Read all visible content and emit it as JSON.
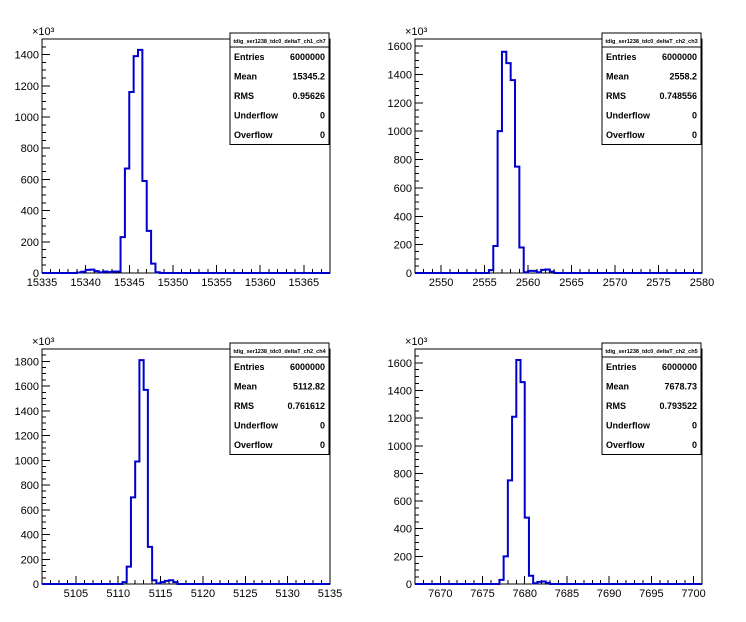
{
  "chart_data": [
    {
      "type": "histogram",
      "title": "",
      "stats_title": "tdig_ser1238_tdc0_deltaT_ch1_ch7",
      "stats": [
        {
          "label": "Entries",
          "value": "6000000"
        },
        {
          "label": "Mean",
          "value": "15345.2"
        },
        {
          "label": "RMS",
          "value": "0.95626"
        },
        {
          "label": "Underflow",
          "value": "0"
        },
        {
          "label": "Overflow",
          "value": "0"
        }
      ],
      "xlim": [
        15335,
        15368
      ],
      "ylim": [
        0,
        1500
      ],
      "xticks": [
        15335,
        15340,
        15345,
        15350,
        15355,
        15360,
        15365
      ],
      "yticks": [
        0,
        200,
        400,
        600,
        800,
        1000,
        1200,
        1400
      ],
      "yexp": "×10³",
      "bin_width": 0.5,
      "bins": [
        [
          15339.0,
          3
        ],
        [
          15339.5,
          8
        ],
        [
          15340.0,
          20
        ],
        [
          15340.5,
          22
        ],
        [
          15341.0,
          12
        ],
        [
          15341.5,
          4
        ],
        [
          15342.0,
          10
        ],
        [
          15342.5,
          6
        ],
        [
          15343.0,
          10
        ],
        [
          15343.5,
          10
        ],
        [
          15344.0,
          230
        ],
        [
          15344.5,
          670
        ],
        [
          15345.0,
          1160
        ],
        [
          15345.5,
          1390
        ],
        [
          15346.0,
          1430
        ],
        [
          15346.5,
          590
        ],
        [
          15347.0,
          270
        ],
        [
          15347.5,
          60
        ],
        [
          15348.0,
          5
        ]
      ]
    },
    {
      "type": "histogram",
      "title": "",
      "stats_title": "tdig_ser1238_tdc0_deltaT_ch2_ch3",
      "stats": [
        {
          "label": "Entries",
          "value": "6000000"
        },
        {
          "label": "Mean",
          "value": "2558.2"
        },
        {
          "label": "RMS",
          "value": "0.748556"
        },
        {
          "label": "Underflow",
          "value": "0"
        },
        {
          "label": "Overflow",
          "value": "0"
        }
      ],
      "xlim": [
        2547,
        2580
      ],
      "ylim": [
        0,
        1650
      ],
      "xticks": [
        2550,
        2555,
        2560,
        2565,
        2570,
        2575,
        2580
      ],
      "yticks": [
        0,
        200,
        400,
        600,
        800,
        1000,
        1200,
        1400,
        1600
      ],
      "yexp": "×10³",
      "bin_width": 0.5,
      "bins": [
        [
          2555.5,
          20
        ],
        [
          2556.0,
          190
        ],
        [
          2556.5,
          1000
        ],
        [
          2557.0,
          1560
        ],
        [
          2557.5,
          1480
        ],
        [
          2558.0,
          1360
        ],
        [
          2558.5,
          750
        ],
        [
          2559.0,
          180
        ],
        [
          2559.5,
          5
        ],
        [
          2560.0,
          15
        ],
        [
          2560.5,
          15
        ],
        [
          2561.0,
          5
        ],
        [
          2561.5,
          22
        ],
        [
          2562.0,
          25
        ],
        [
          2562.5,
          10
        ]
      ]
    },
    {
      "type": "histogram",
      "title": "",
      "stats_title": "tdig_ser1238_tdc0_deltaT_ch2_ch4",
      "stats": [
        {
          "label": "Entries",
          "value": "6000000"
        },
        {
          "label": "Mean",
          "value": "5112.82"
        },
        {
          "label": "RMS",
          "value": "0.761612"
        },
        {
          "label": "Underflow",
          "value": "0"
        },
        {
          "label": "Overflow",
          "value": "0"
        }
      ],
      "xlim": [
        5101,
        5135
      ],
      "ylim": [
        0,
        1900
      ],
      "xticks": [
        5105,
        5110,
        5115,
        5120,
        5125,
        5130,
        5135
      ],
      "yticks": [
        0,
        200,
        400,
        600,
        800,
        1000,
        1200,
        1400,
        1600,
        1800
      ],
      "yexp": "×10³",
      "bin_width": 0.5,
      "bins": [
        [
          5110.5,
          15
        ],
        [
          5111.0,
          140
        ],
        [
          5111.5,
          700
        ],
        [
          5112.0,
          990
        ],
        [
          5112.5,
          1810
        ],
        [
          5113.0,
          1570
        ],
        [
          5113.5,
          300
        ],
        [
          5114.0,
          30
        ],
        [
          5114.5,
          5
        ],
        [
          5115.0,
          15
        ],
        [
          5115.5,
          25
        ],
        [
          5116.0,
          30
        ],
        [
          5116.5,
          15
        ]
      ]
    },
    {
      "type": "histogram",
      "title": "",
      "stats_title": "tdig_ser1238_tdc0_deltaT_ch2_ch5",
      "stats": [
        {
          "label": "Entries",
          "value": "6000000"
        },
        {
          "label": "Mean",
          "value": "7678.73"
        },
        {
          "label": "RMS",
          "value": "0.793522"
        },
        {
          "label": "Underflow",
          "value": "0"
        },
        {
          "label": "Overflow",
          "value": "0"
        }
      ],
      "xlim": [
        7667,
        7701
      ],
      "ylim": [
        0,
        1700
      ],
      "xticks": [
        7670,
        7675,
        7680,
        7685,
        7690,
        7695,
        7700
      ],
      "yticks": [
        0,
        200,
        400,
        600,
        800,
        1000,
        1200,
        1400,
        1600
      ],
      "yexp": "×10³",
      "bin_width": 0.5,
      "bins": [
        [
          7677.0,
          30
        ],
        [
          7677.5,
          200
        ],
        [
          7678.0,
          750
        ],
        [
          7678.5,
          1210
        ],
        [
          7679.0,
          1620
        ],
        [
          7679.5,
          1460
        ],
        [
          7680.0,
          480
        ],
        [
          7680.5,
          60
        ],
        [
          7681.0,
          5
        ],
        [
          7681.5,
          15
        ],
        [
          7682.0,
          18
        ],
        [
          7682.5,
          8
        ]
      ]
    }
  ]
}
